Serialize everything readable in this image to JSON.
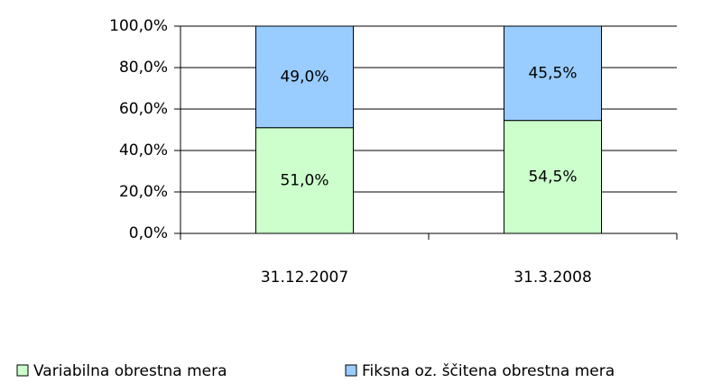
{
  "chart_data": {
    "type": "bar",
    "stacked": true,
    "grid": true,
    "categories": [
      "31.12.2007",
      "31.3.2008"
    ],
    "series": [
      {
        "name": "Variabilna obrestna mera",
        "color": "#ccffcc",
        "values": [
          51.0,
          54.5
        ],
        "value_labels": [
          "51,0%",
          "54,5%"
        ]
      },
      {
        "name": "Fiksna oz. ščitena obrestna mera",
        "color": "#99ccff",
        "values": [
          49.0,
          45.5
        ],
        "value_labels": [
          "49,0%",
          "45,5%"
        ]
      }
    ],
    "ylim": [
      0,
      100
    ],
    "yticks": [
      {
        "value": 0,
        "label": "0,0%"
      },
      {
        "value": 20,
        "label": "20,0%"
      },
      {
        "value": 40,
        "label": "40,0%"
      },
      {
        "value": 60,
        "label": "60,0%"
      },
      {
        "value": 80,
        "label": "80,0%"
      },
      {
        "value": 100,
        "label": "100,0%"
      }
    ],
    "legend": "bottom"
  }
}
